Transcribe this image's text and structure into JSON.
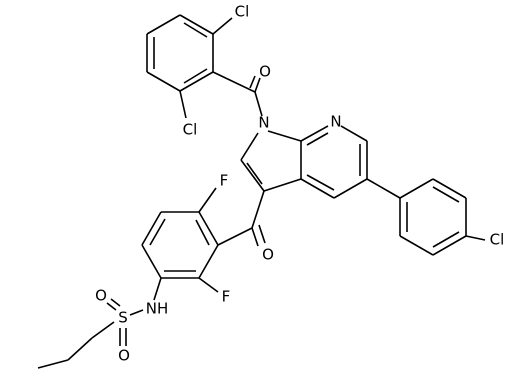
{
  "atoms": [
    {
      "label": "Cl"
    },
    {
      "label": "O"
    },
    {
      "label": "Cl"
    },
    {
      "label": "N"
    },
    {
      "label": "N"
    },
    {
      "label": "O"
    },
    {
      "label": "F"
    },
    {
      "label": "F"
    },
    {
      "label": "Cl"
    },
    {
      "label": "NH"
    },
    {
      "label": "S"
    },
    {
      "label": "O"
    },
    {
      "label": "O"
    }
  ]
}
